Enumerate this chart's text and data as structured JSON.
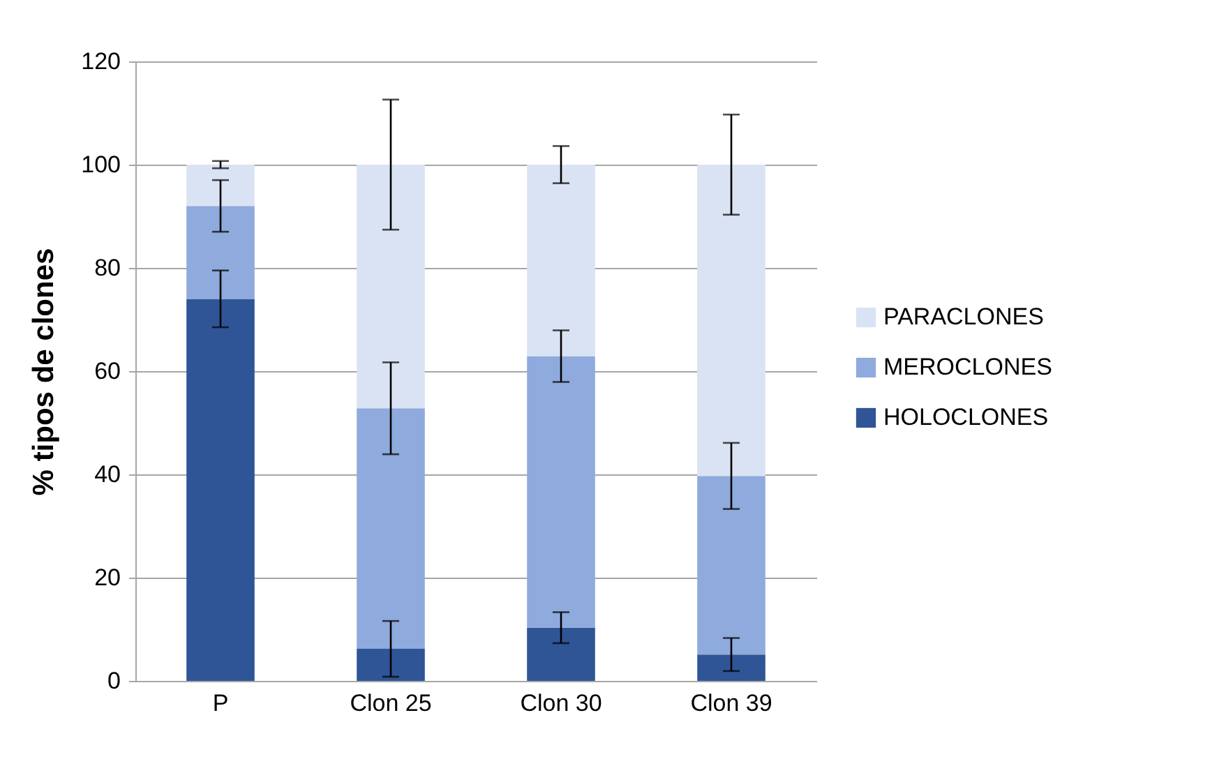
{
  "chart_data": {
    "type": "bar",
    "stacked": true,
    "ylabel": "% tipos de clones",
    "categories": [
      "P",
      "Clon 25",
      "Clon 30",
      "Clon 39"
    ],
    "series": [
      {
        "name": "HOLOCLONES",
        "color": "#2f5597",
        "values": [
          74,
          6.2,
          10.3,
          5.1
        ],
        "errors": [
          5.5,
          5.4,
          3,
          3.2
        ]
      },
      {
        "name": "MEROCLONES",
        "color": "#8faadc",
        "values": [
          18,
          46.6,
          52.6,
          34.6
        ],
        "errors": [
          5,
          8.9,
          5,
          6.4
        ]
      },
      {
        "name": "PARACLONES",
        "color": "#dae3f3",
        "values": [
          8,
          47.2,
          37.1,
          60.3
        ],
        "errors": [
          0.7,
          12.6,
          3.6,
          9.7
        ]
      }
    ],
    "ylim": [
      0,
      120
    ],
    "yticks": [
      0,
      20,
      40,
      60,
      80,
      100,
      120
    ],
    "grid": "y",
    "legend": "right"
  }
}
